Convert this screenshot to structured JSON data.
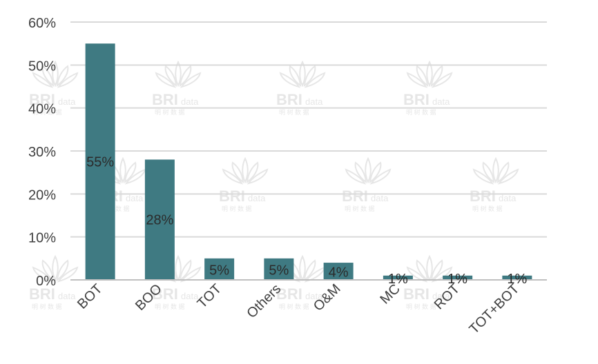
{
  "chart_data": {
    "type": "bar",
    "categories": [
      "BOT",
      "BOO",
      "TOT",
      "Others",
      "O&M",
      "MC",
      "ROT",
      "TOT+BOT"
    ],
    "values": [
      55,
      28,
      5,
      5,
      4,
      1,
      1,
      1
    ],
    "data_labels": [
      "55%",
      "28%",
      "5%",
      "5%",
      "4%",
      "1%",
      "1%",
      "1%"
    ],
    "y_ticks": [
      0,
      10,
      20,
      30,
      40,
      50,
      60
    ],
    "y_tick_labels": [
      "0%",
      "10%",
      "20%",
      "30%",
      "40%",
      "50%",
      "60%"
    ],
    "ylim": [
      0,
      60
    ],
    "title": "",
    "xlabel": "",
    "ylabel": "",
    "grid": true,
    "legend": "none",
    "colors": {
      "bar": "#3f7a82",
      "grid": "#d9d9d9",
      "axis": "#bfbfbf",
      "text": "#404040",
      "label_text": "#2b2b2b"
    }
  },
  "watermark": {
    "brand": "BRI",
    "suffix": "data",
    "sub": "明 树 数 据",
    "color": "#e6e6e6"
  }
}
